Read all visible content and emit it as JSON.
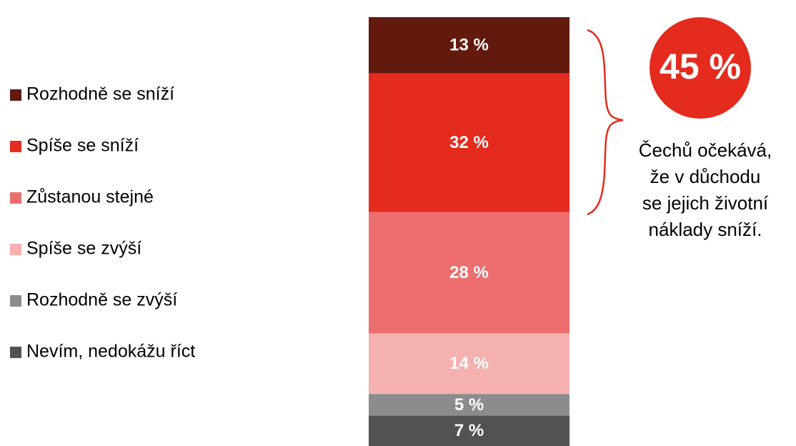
{
  "chart_data": {
    "type": "stacked_bar",
    "series": [
      {
        "name": "Rozhodně se sníží",
        "color": "#62190e",
        "values": [
          13
        ],
        "value_labels": [
          "13 %"
        ]
      },
      {
        "name": "Spíše se sníží",
        "color": "#e52a1e",
        "values": [
          32
        ],
        "value_labels": [
          "32 %"
        ]
      },
      {
        "name": "Zůstanou stejné",
        "color": "#ec6e6e",
        "values": [
          28
        ],
        "value_labels": [
          "28 %"
        ]
      },
      {
        "name": "Spíše se zvýší",
        "color": "#f5b0b0",
        "values": [
          14
        ],
        "value_labels": [
          "14 %"
        ]
      },
      {
        "name": "Rozhodně se zvýší",
        "color": "#8c8c8c",
        "values": [
          5
        ],
        "value_labels": [
          "5 %"
        ]
      },
      {
        "name": "Nevím, nedokážu říct",
        "color": "#525252",
        "values": [
          7
        ],
        "value_labels": [
          "7 %"
        ]
      }
    ],
    "highlight_label": "45 %",
    "highlight_color": "#e52a1e",
    "annotation_lines": [
      "Čechů očekává,",
      "že v důchodu",
      "se jejich životní",
      "náklady sníží."
    ]
  }
}
